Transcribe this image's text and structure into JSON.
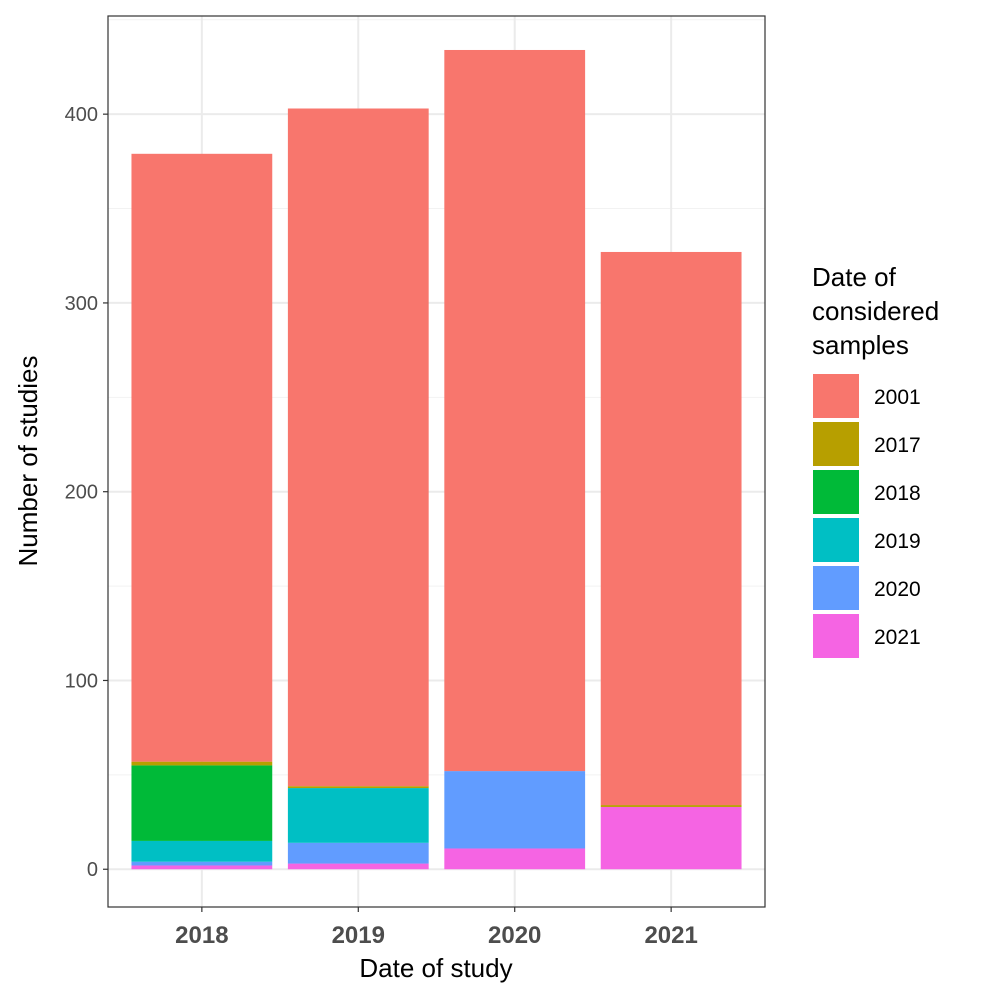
{
  "chart_data": {
    "type": "bar",
    "stacked": true,
    "xlabel": "Date of study",
    "ylabel": "Number of studies",
    "categories": [
      "2018",
      "2019",
      "2020",
      "2021"
    ],
    "ylim": [
      -20,
      452
    ],
    "yticks": [
      0,
      100,
      200,
      300,
      400
    ],
    "grid": true,
    "legend": {
      "title_lines": [
        "Date of",
        "considered",
        "samples"
      ],
      "placement": "right"
    },
    "series": [
      {
        "name": "2001",
        "color": "#F8766D",
        "values": [
          322,
          359,
          382,
          293
        ]
      },
      {
        "name": "2017",
        "color": "#B79F00",
        "values": [
          2,
          1,
          0,
          1
        ]
      },
      {
        "name": "2018",
        "color": "#00BA38",
        "values": [
          40,
          0,
          0,
          0
        ]
      },
      {
        "name": "2019",
        "color": "#00BFC4",
        "values": [
          11,
          29,
          0,
          0
        ]
      },
      {
        "name": "2020",
        "color": "#619CFF",
        "values": [
          2,
          11,
          41,
          0
        ]
      },
      {
        "name": "2021",
        "color": "#F564E3",
        "values": [
          2,
          3,
          11,
          33
        ]
      }
    ]
  }
}
